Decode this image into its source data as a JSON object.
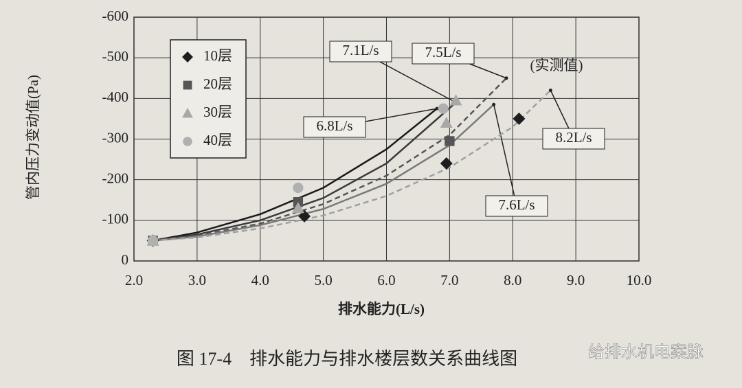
{
  "chart_data": {
    "type": "scatter",
    "ylabel": "管内压力变动值(Pa)",
    "xlabel": "排水能力(L/s)",
    "caption": "图 17-4　排水能力与排水楼层数关系曲线图",
    "measured_label": "(实测值)",
    "watermark": "给排水机电案脉",
    "xlim": [
      2,
      10
    ],
    "xticks": [
      {
        "value": 2,
        "label": "2.0"
      },
      {
        "value": 3,
        "label": "3.0"
      },
      {
        "value": 4,
        "label": "4.0"
      },
      {
        "value": 5,
        "label": "5.0"
      },
      {
        "value": 6,
        "label": "6.0"
      },
      {
        "value": 7,
        "label": "7.0"
      },
      {
        "value": 8,
        "label": "8.0"
      },
      {
        "value": 9,
        "label": "9.0"
      },
      {
        "value": 10,
        "label": "10.0"
      }
    ],
    "ylim": [
      0,
      -600
    ],
    "yticks": [
      -600,
      -500,
      -400,
      -300,
      -200,
      -100,
      0
    ],
    "grid": true,
    "series": [
      {
        "name": "10层",
        "marker": "diamond",
        "color": "#1e1e1e",
        "x": [
          2.3,
          4.7,
          6.95,
          8.1
        ],
        "values": [
          -50,
          -110,
          -240,
          -350
        ]
      },
      {
        "name": "20层",
        "marker": "square",
        "color": "#555555",
        "x": [
          2.3,
          4.6,
          7.0
        ],
        "values": [
          -50,
          -145,
          -295
        ]
      },
      {
        "name": "30层",
        "marker": "triangle",
        "color": "#a8a8a8",
        "x": [
          2.3,
          4.6,
          6.95,
          7.1
        ],
        "values": [
          -50,
          -130,
          -340,
          -395
        ]
      },
      {
        "name": "40层",
        "marker": "circle",
        "color": "#b0b0b0",
        "x": [
          2.3,
          4.6,
          6.9
        ],
        "values": [
          -50,
          -180,
          -375
        ]
      }
    ],
    "curves": [
      {
        "label": "6.8L/s",
        "color": "#1a1a1a",
        "dashed": false,
        "x": [
          2.3,
          3,
          4,
          5,
          6,
          6.8
        ],
        "values": [
          -50,
          -70,
          -115,
          -180,
          -275,
          -375
        ]
      },
      {
        "label": "7.1L/s",
        "color": "#3a3a3a",
        "dashed": false,
        "x": [
          2.3,
          3,
          4,
          5,
          6,
          7.1
        ],
        "values": [
          -50,
          -65,
          -100,
          -155,
          -240,
          -390
        ]
      },
      {
        "label": "7.5L/s",
        "color": "#555555",
        "dashed": true,
        "x": [
          2.3,
          3,
          4,
          5,
          6,
          7,
          7.9
        ],
        "values": [
          -50,
          -62,
          -92,
          -140,
          -210,
          -310,
          -450
        ]
      },
      {
        "label": "7.6L/s",
        "color": "#7a7a7a",
        "dashed": false,
        "x": [
          2.3,
          3,
          4,
          5,
          6,
          7,
          7.7
        ],
        "values": [
          -50,
          -60,
          -88,
          -128,
          -190,
          -285,
          -385
        ]
      },
      {
        "label": "8.2L/s",
        "color": "#a0a0a0",
        "dashed": true,
        "x": [
          2.3,
          3,
          4,
          5,
          6,
          7,
          8,
          8.6
        ],
        "values": [
          -50,
          -58,
          -80,
          -112,
          -160,
          -230,
          -330,
          -420
        ]
      }
    ]
  }
}
